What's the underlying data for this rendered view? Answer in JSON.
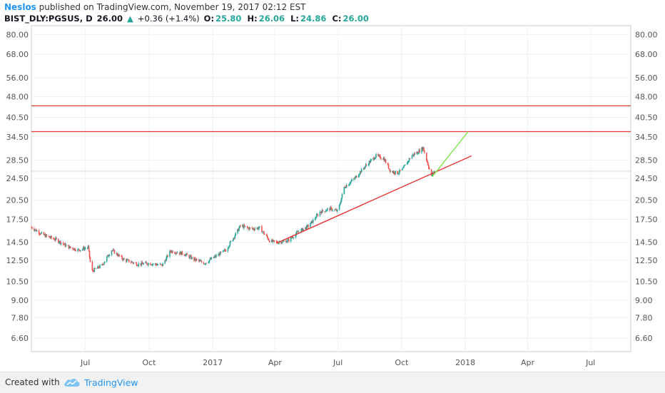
{
  "header": {
    "author": "Neslos",
    "published": "published on TradingView.com, November 19, 2017 02:12 EST",
    "symbol": "BIST_DLY:PGSUS, D",
    "last": "26.00",
    "up_arrow": "▲",
    "change": "+0.36 (+1.4%)",
    "o_label": "O:",
    "o_value": "25.80",
    "h_label": "H:",
    "h_value": "26.06",
    "l_label": "L:",
    "l_value": "24.86",
    "c_label": "C:",
    "c_value": "26.00"
  },
  "footer": {
    "created_with": "Created with",
    "brand": "TradingView"
  },
  "colors": {
    "up_candle": "#26a69a",
    "down_candle": "#ef5350",
    "trendline_red": "#e53935",
    "trendline_green": "#7ee64a",
    "grid": "#eef0f3",
    "axis_text": "#555555",
    "brand_blue": "#2196f3"
  },
  "chart_data": {
    "type": "candlestick",
    "scale": "log",
    "y_ticks": [
      80.0,
      68.0,
      56.0,
      48.0,
      40.5,
      34.5,
      28.5,
      24.5,
      20.5,
      17.5,
      14.5,
      12.5,
      10.5,
      9.0,
      7.8,
      6.6
    ],
    "x_ticks": [
      "Jul",
      "Oct",
      "2017",
      "Apr",
      "Jul",
      "Oct",
      "2018",
      "Apr",
      "Jul"
    ],
    "x_tick_dates": [
      "2016-07-01",
      "2016-10-01",
      "2017-01-01",
      "2017-04-01",
      "2017-07-01",
      "2017-10-01",
      "2018-01-01",
      "2018-04-01",
      "2018-07-01"
    ],
    "price_line": 26.0,
    "x_range": [
      "2016-04-14",
      "2018-08-28"
    ],
    "y_range": [
      5.9,
      86
    ],
    "grid": true,
    "price_path": [
      [
        "2016-04-14",
        16.4
      ],
      [
        "2016-05-01",
        15.4
      ],
      [
        "2016-05-20",
        14.8
      ],
      [
        "2016-06-05",
        14.0
      ],
      [
        "2016-06-20",
        13.6
      ],
      [
        "2016-07-05",
        13.9
      ],
      [
        "2016-07-10",
        11.4
      ],
      [
        "2016-07-25",
        12.0
      ],
      [
        "2016-08-08",
        13.6
      ],
      [
        "2016-08-25",
        12.6
      ],
      [
        "2016-09-15",
        12.1
      ],
      [
        "2016-10-01",
        12.2
      ],
      [
        "2016-10-20",
        12.0
      ],
      [
        "2016-11-01",
        13.5
      ],
      [
        "2016-11-20",
        13.2
      ],
      [
        "2016-12-05",
        12.6
      ],
      [
        "2016-12-20",
        12.2
      ],
      [
        "2017-01-05",
        12.9
      ],
      [
        "2017-01-20",
        13.6
      ],
      [
        "2017-02-01",
        15.2
      ],
      [
        "2017-02-10",
        16.6
      ],
      [
        "2017-02-25",
        16.2
      ],
      [
        "2017-03-10",
        16.3
      ],
      [
        "2017-03-25",
        14.6
      ],
      [
        "2017-04-05",
        14.5
      ],
      [
        "2017-04-20",
        14.7
      ],
      [
        "2017-05-05",
        15.8
      ],
      [
        "2017-05-20",
        16.6
      ],
      [
        "2017-06-05",
        18.6
      ],
      [
        "2017-06-20",
        19.1
      ],
      [
        "2017-07-01",
        18.7
      ],
      [
        "2017-07-10",
        22.8
      ],
      [
        "2017-07-25",
        24.5
      ],
      [
        "2017-08-10",
        27.2
      ],
      [
        "2017-08-25",
        29.5
      ],
      [
        "2017-09-05",
        28.9
      ],
      [
        "2017-09-15",
        26.0
      ],
      [
        "2017-09-25",
        25.6
      ],
      [
        "2017-10-03",
        26.5
      ],
      [
        "2017-10-15",
        29.5
      ],
      [
        "2017-10-25",
        30.5
      ],
      [
        "2017-11-01",
        31.5
      ],
      [
        "2017-11-08",
        27.5
      ],
      [
        "2017-11-13",
        24.9
      ],
      [
        "2017-11-17",
        26.0
      ]
    ],
    "drawings": {
      "horizontal_lines": [
        44.5,
        36.0
      ],
      "trendline_red": [
        [
          "2017-04-03",
          14.38
        ],
        [
          "2018-01-10",
          29.5
        ]
      ],
      "trendline_green": [
        [
          "2017-11-14",
          24.8
        ],
        [
          "2018-01-05",
          36.0
        ]
      ]
    }
  }
}
